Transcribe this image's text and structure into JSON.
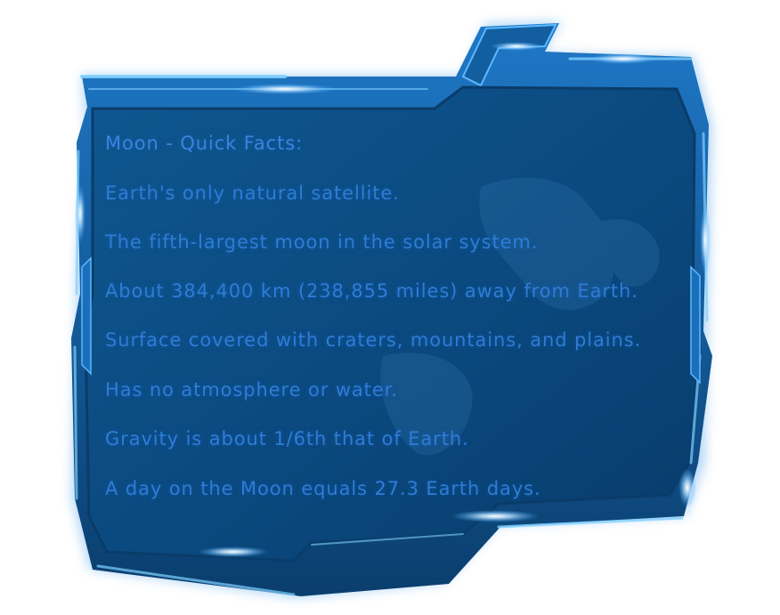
{
  "panel": {
    "title": "Moon - Quick Facts:",
    "facts": [
      "Earth's only natural satellite.",
      "The fifth-largest moon in the solar system.",
      "About 384,400 km (238,855 miles) away from Earth.",
      "Surface covered with craters, mountains, and plains.",
      "Has no atmosphere or water.",
      "Gravity is about 1/6th that of Earth.",
      "A day on the Moon equals 27.3 Earth days."
    ]
  },
  "colors": {
    "panel_fill": "#0d4f85",
    "frame_dark": "#083a66",
    "frame_glow": "#3fa8ff",
    "text": "#2f7cd6",
    "background": "#ffffff"
  }
}
